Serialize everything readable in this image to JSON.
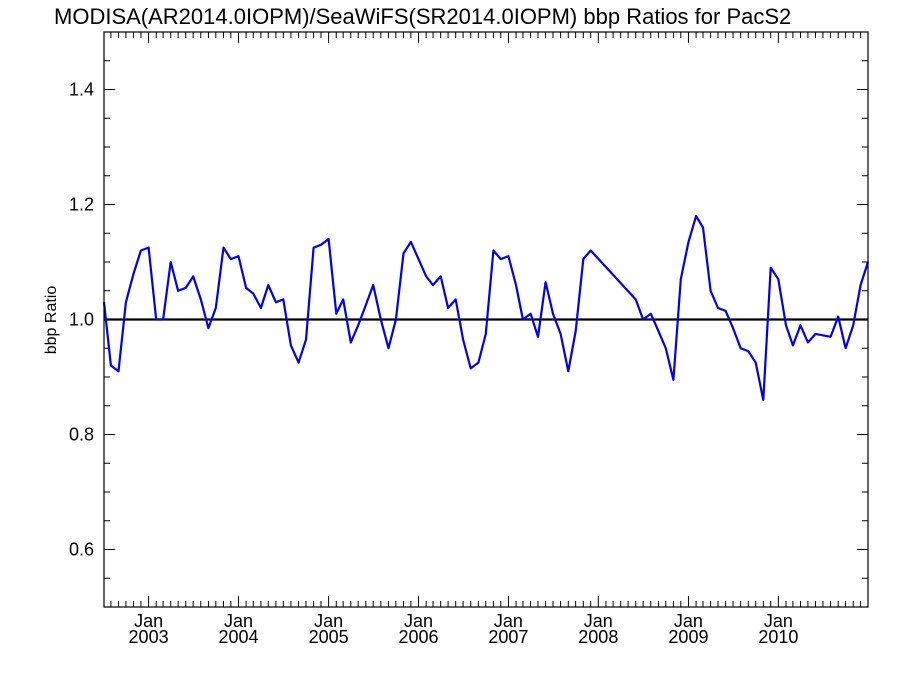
{
  "chart_data": {
    "type": "line",
    "title": "MODISA(AR2014.0IOPM)/SeaWiFS(SR2014.0IOPM)  bbp Ratios for PacS2",
    "ylabel": "bbp Ratio",
    "xlabel": "",
    "ylim": [
      0.5,
      1.5
    ],
    "xlim": [
      "2002-07-04",
      "2010-12-31"
    ],
    "grid": false,
    "legend": "none",
    "yticks": [
      "0.6",
      "0.8",
      "1.0",
      "1.2",
      "1.4"
    ],
    "xtick_month": "Jan",
    "xticks": [
      "2003",
      "2004",
      "2005",
      "2006",
      "2007",
      "2008",
      "2009",
      "2010"
    ],
    "reference_line": 1.0,
    "series": [
      {
        "color": "#0000ee",
        "points": [
          [
            "2002-07-04",
            1.03
          ],
          [
            "2002-08-01",
            0.92
          ],
          [
            "2002-09-01",
            0.91
          ],
          [
            "2002-10-01",
            1.03
          ],
          [
            "2002-11-01",
            1.08
          ],
          [
            "2002-12-01",
            1.12
          ],
          [
            "2003-01-01",
            1.125
          ],
          [
            "2003-02-01",
            1.0
          ],
          [
            "2003-03-01",
            1.0
          ],
          [
            "2003-04-01",
            1.1
          ],
          [
            "2003-05-01",
            1.05
          ],
          [
            "2003-06-01",
            1.055
          ],
          [
            "2003-07-01",
            1.075
          ],
          [
            "2003-08-01",
            1.035
          ],
          [
            "2003-09-01",
            0.985
          ],
          [
            "2003-10-01",
            1.02
          ],
          [
            "2003-11-01",
            1.125
          ],
          [
            "2003-12-01",
            1.105
          ],
          [
            "2004-01-01",
            1.11
          ],
          [
            "2004-02-01",
            1.055
          ],
          [
            "2004-03-01",
            1.045
          ],
          [
            "2004-04-01",
            1.02
          ],
          [
            "2004-05-01",
            1.06
          ],
          [
            "2004-06-01",
            1.03
          ],
          [
            "2004-07-01",
            1.035
          ],
          [
            "2004-08-01",
            0.955
          ],
          [
            "2004-09-01",
            0.925
          ],
          [
            "2004-10-01",
            0.965
          ],
          [
            "2004-11-01",
            1.125
          ],
          [
            "2004-12-01",
            1.13
          ],
          [
            "2005-01-01",
            1.14
          ],
          [
            "2005-02-01",
            1.01
          ],
          [
            "2005-03-01",
            1.035
          ],
          [
            "2005-04-01",
            0.96
          ],
          [
            "2005-05-01",
            0.99
          ],
          [
            "2005-06-01",
            1.025
          ],
          [
            "2005-07-01",
            1.06
          ],
          [
            "2005-08-01",
            1.0
          ],
          [
            "2005-09-01",
            0.95
          ],
          [
            "2005-10-01",
            1.0
          ],
          [
            "2005-11-01",
            1.115
          ],
          [
            "2005-12-01",
            1.135
          ],
          [
            "2006-01-01",
            1.105
          ],
          [
            "2006-02-01",
            1.075
          ],
          [
            "2006-03-01",
            1.06
          ],
          [
            "2006-04-01",
            1.075
          ],
          [
            "2006-05-01",
            1.02
          ],
          [
            "2006-06-01",
            1.035
          ],
          [
            "2006-07-01",
            0.965
          ],
          [
            "2006-08-01",
            0.915
          ],
          [
            "2006-09-01",
            0.925
          ],
          [
            "2006-10-01",
            0.975
          ],
          [
            "2006-11-01",
            1.12
          ],
          [
            "2006-12-01",
            1.105
          ],
          [
            "2007-01-01",
            1.11
          ],
          [
            "2007-02-01",
            1.06
          ],
          [
            "2007-03-01",
            1.0
          ],
          [
            "2007-04-01",
            1.01
          ],
          [
            "2007-05-01",
            0.97
          ],
          [
            "2007-06-01",
            1.065
          ],
          [
            "2007-07-01",
            1.01
          ],
          [
            "2007-08-01",
            0.975
          ],
          [
            "2007-09-01",
            0.91
          ],
          [
            "2007-10-01",
            0.98
          ],
          [
            "2007-11-01",
            1.105
          ],
          [
            "2007-12-01",
            1.12
          ],
          [
            "2008-06-01",
            1.035
          ],
          [
            "2008-07-01",
            1.0
          ],
          [
            "2008-08-01",
            1.01
          ],
          [
            "2008-09-01",
            0.98
          ],
          [
            "2008-10-01",
            0.95
          ],
          [
            "2008-11-01",
            0.895
          ],
          [
            "2008-12-01",
            1.07
          ],
          [
            "2009-01-01",
            1.135
          ],
          [
            "2009-02-01",
            1.18
          ],
          [
            "2009-03-01",
            1.16
          ],
          [
            "2009-04-01",
            1.05
          ],
          [
            "2009-05-01",
            1.02
          ],
          [
            "2009-06-01",
            1.015
          ],
          [
            "2009-07-01",
            0.985
          ],
          [
            "2009-08-01",
            0.95
          ],
          [
            "2009-09-01",
            0.945
          ],
          [
            "2009-10-01",
            0.925
          ],
          [
            "2009-11-01",
            0.86
          ],
          [
            "2009-12-01",
            1.09
          ],
          [
            "2010-01-01",
            1.07
          ],
          [
            "2010-02-01",
            0.99
          ],
          [
            "2010-03-01",
            0.955
          ],
          [
            "2010-04-01",
            0.99
          ],
          [
            "2010-05-01",
            0.96
          ],
          [
            "2010-06-01",
            0.975
          ],
          [
            "2010-08-01",
            0.97
          ],
          [
            "2010-09-01",
            1.005
          ],
          [
            "2010-10-01",
            0.95
          ],
          [
            "2010-11-01",
            0.99
          ],
          [
            "2010-12-01",
            1.06
          ],
          [
            "2010-12-31",
            1.1
          ]
        ]
      }
    ]
  }
}
